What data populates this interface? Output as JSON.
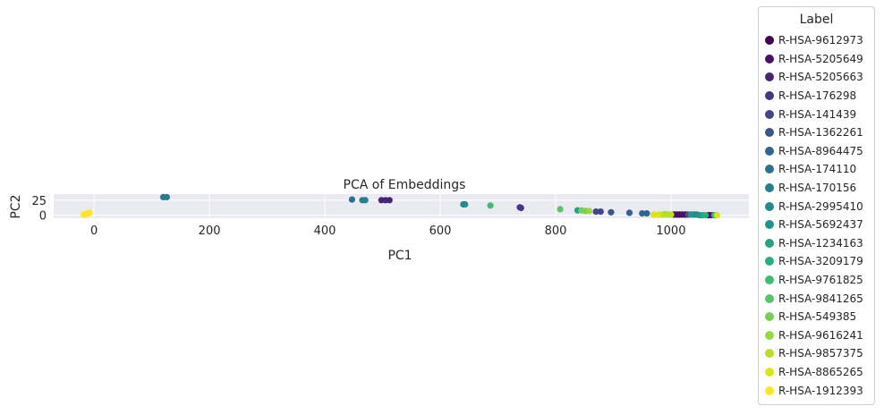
{
  "chart_data": {
    "type": "scatter",
    "title": "PCA of Embeddings",
    "xlabel": "PC1",
    "ylabel": "PC2",
    "xlim": [
      -70,
      1135
    ],
    "ylim": [
      -5,
      35
    ],
    "xticks": [
      "0",
      "200",
      "400",
      "600",
      "800",
      "1000"
    ],
    "xtick_values": [
      0,
      200,
      400,
      600,
      800,
      1000
    ],
    "yticks": [
      "0",
      "25"
    ],
    "ytick_values": [
      0,
      25
    ],
    "grid": true,
    "legend_title": "Label",
    "legend_position": "outside-right",
    "series": [
      {
        "name": "R-HSA-9612973",
        "color": "#440154",
        "points": [
          [
            1005,
            1
          ],
          [
            1015,
            1
          ],
          [
            1025,
            1
          ],
          [
            1065,
            0
          ]
        ]
      },
      {
        "name": "R-HSA-5205649",
        "color": "#471365",
        "points": [
          [
            1010,
            1
          ],
          [
            1020,
            1
          ],
          [
            1070,
            0
          ]
        ]
      },
      {
        "name": "R-HSA-5205663",
        "color": "#482475",
        "points": [
          [
            498,
            25
          ],
          [
            505,
            25
          ],
          [
            512,
            25
          ]
        ]
      },
      {
        "name": "R-HSA-176298",
        "color": "#453781",
        "points": [
          [
            738,
            13
          ],
          [
            740,
            12
          ]
        ]
      },
      {
        "name": "R-HSA-141439",
        "color": "#3f4788",
        "points": [
          [
            870,
            6
          ],
          [
            878,
            6
          ]
        ]
      },
      {
        "name": "R-HSA-1362261",
        "color": "#39568c",
        "points": [
          [
            896,
            5
          ],
          [
            1030,
            1
          ]
        ]
      },
      {
        "name": "R-HSA-8964475",
        "color": "#32658e",
        "points": [
          [
            928,
            4
          ],
          [
            950,
            3
          ],
          [
            958,
            3
          ]
        ]
      },
      {
        "name": "R-HSA-174110",
        "color": "#2c728e",
        "points": [
          [
            447,
            26
          ],
          [
            1040,
            1
          ]
        ]
      },
      {
        "name": "R-HSA-170156",
        "color": "#287d8e",
        "points": [
          [
            120,
            30
          ],
          [
            126,
            30
          ],
          [
            465,
            25
          ],
          [
            470,
            25
          ]
        ]
      },
      {
        "name": "R-HSA-2995410",
        "color": "#238a8d",
        "points": [
          [
            640,
            18
          ],
          [
            643,
            18
          ],
          [
            1045,
            1
          ]
        ]
      },
      {
        "name": "R-HSA-5692437",
        "color": "#1f968b",
        "points": [
          [
            1035,
            1
          ],
          [
            1050,
            0
          ]
        ]
      },
      {
        "name": "R-HSA-1234163",
        "color": "#20a386",
        "points": [
          [
            838,
            8
          ],
          [
            1055,
            0
          ]
        ]
      },
      {
        "name": "R-HSA-3209179",
        "color": "#29af7f",
        "points": [
          [
            1060,
            0
          ],
          [
            1075,
            0
          ]
        ]
      },
      {
        "name": "R-HSA-9761825",
        "color": "#3dbc74",
        "points": [
          [
            687,
            16
          ],
          [
            1078,
            0
          ]
        ]
      },
      {
        "name": "R-HSA-9841265",
        "color": "#56c667",
        "points": [
          [
            808,
            10
          ]
        ]
      },
      {
        "name": "R-HSA-549385",
        "color": "#75d054",
        "points": [
          [
            845,
            8
          ],
          [
            852,
            7
          ]
        ]
      },
      {
        "name": "R-HSA-9616241",
        "color": "#95d840",
        "points": [
          [
            858,
            7
          ],
          [
            990,
            2
          ]
        ]
      },
      {
        "name": "R-HSA-9857375",
        "color": "#bade28",
        "points": [
          [
            985,
            1
          ],
          [
            995,
            1
          ],
          [
            1000,
            1
          ]
        ]
      },
      {
        "name": "R-HSA-8865265",
        "color": "#dde318",
        "points": [
          [
            970,
            1
          ],
          [
            978,
            1
          ],
          [
            1080,
            0
          ]
        ]
      },
      {
        "name": "R-HSA-1912393",
        "color": "#fde725",
        "points": [
          [
            -18,
            1
          ],
          [
            -14,
            2
          ],
          [
            -12,
            3
          ],
          [
            -8,
            4
          ]
        ]
      }
    ]
  }
}
